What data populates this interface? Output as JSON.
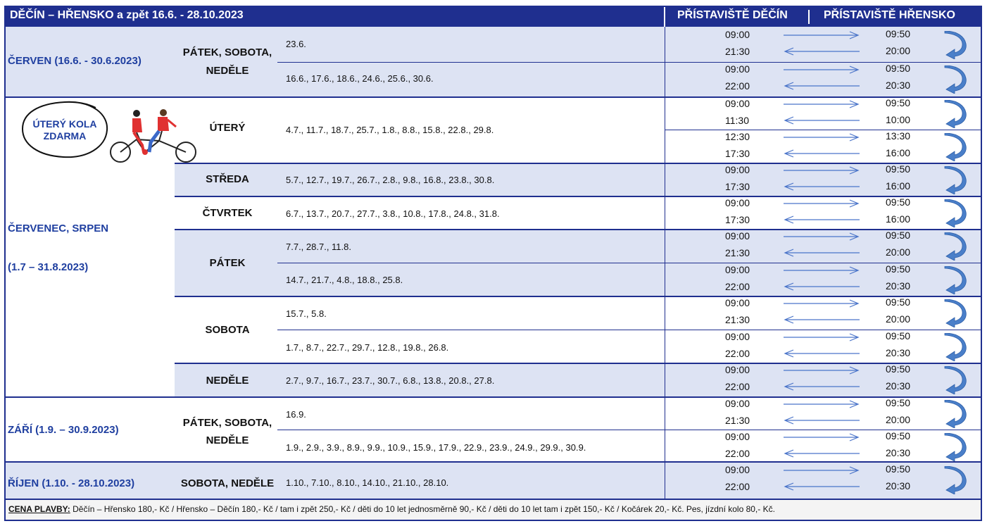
{
  "header": {
    "title": "DĚČÍN – HŘENSKO a zpět 16.6. - 28.10.2023",
    "port_decin": "PŘÍSTAVIŠTĚ DĚČÍN",
    "port_hrensko": "PŘÍSTAVIŠTĚ HŘENSKO"
  },
  "badge": {
    "line1": "ÚTERÝ KOLA",
    "line2": "ZDARMA"
  },
  "sections": [
    {
      "month": "ČERVEN    (16.6. - 30.6.2023)",
      "day": "PÁTEK, SOBOTA,",
      "day2": "NEDĚLE",
      "rows": [
        {
          "dates": "23.6.",
          "dep1": "09:00",
          "ret1": "21:30",
          "arr1": "09:50",
          "dep2": "20:00"
        },
        {
          "dates": "16.6., 17.6., 18.6., 24.6., 25.6., 30.6.",
          "dep1": "09:00",
          "ret1": "22:00",
          "arr1": "09:50",
          "dep2": "20:30"
        }
      ]
    },
    {
      "month": "ČERVENEC, SRPEN",
      "month2": "(1.7 – 31.8.2023)",
      "groups": [
        {
          "day": "ÚTERÝ",
          "rows": [
            {
              "dates": "4.7., 11.7., 18.7., 25.7., 1.8., 8.8., 15.8., 22.8., 29.8.",
              "dep1": "09:00",
              "ret1": "11:30",
              "arr1": "09:50",
              "dep2": "10:00"
            },
            {
              "dates": "",
              "dep1": "12:30",
              "ret1": "17:30",
              "arr1": "13:30",
              "dep2": "16:00"
            }
          ]
        },
        {
          "day": "STŘEDA",
          "rows": [
            {
              "dates": "5.7., 12.7., 19.7., 26.7., 2.8., 9.8., 16.8., 23.8., 30.8.",
              "dep1": "09:00",
              "ret1": "17:30",
              "arr1": "09:50",
              "dep2": "16:00"
            }
          ]
        },
        {
          "day": "ČTVRTEK",
          "rows": [
            {
              "dates": "6.7., 13.7., 20.7., 27.7., 3.8., 10.8., 17.8., 24.8., 31.8.",
              "dep1": "09:00",
              "ret1": "17:30",
              "arr1": "09:50",
              "dep2": "16:00"
            }
          ]
        },
        {
          "day": "PÁTEK",
          "rows": [
            {
              "dates": "7.7., 28.7., 11.8.",
              "dep1": "09:00",
              "ret1": "21:30",
              "arr1": "09:50",
              "dep2": "20:00"
            },
            {
              "dates": "14.7., 21.7., 4.8., 18.8., 25.8.",
              "dep1": "09:00",
              "ret1": "22:00",
              "arr1": "09:50",
              "dep2": "20:30"
            }
          ]
        },
        {
          "day": "SOBOTA",
          "rows": [
            {
              "dates": "15.7., 5.8.",
              "dep1": "09:00",
              "ret1": "21:30",
              "arr1": "09:50",
              "dep2": "20:00"
            },
            {
              "dates": "1.7., 8.7., 22.7., 29.7., 12.8., 19.8., 26.8.",
              "dep1": "09:00",
              "ret1": "22:00",
              "arr1": "09:50",
              "dep2": "20:30"
            }
          ]
        },
        {
          "day": "NEDĚLE",
          "rows": [
            {
              "dates": "2.7., 9.7., 16.7., 23.7., 30.7., 6.8., 13.8., 20.8., 27.8.",
              "dep1": "09:00",
              "ret1": "22:00",
              "arr1": "09:50",
              "dep2": "20:30"
            }
          ]
        }
      ]
    },
    {
      "month": "ZÁŘÍ   (1.9. – 30.9.2023)",
      "day": "PÁTEK, SOBOTA,",
      "day2": "NEDĚLE",
      "rows": [
        {
          "dates": "16.9.",
          "dep1": "09:00",
          "ret1": "21:30",
          "arr1": "09:50",
          "dep2": "20:00"
        },
        {
          "dates": "1.9., 2.9., 3.9., 8.9., 9.9., 10.9., 15.9., 17.9., 22.9., 23.9., 24.9., 29.9., 30.9.",
          "dep1": "09:00",
          "ret1": "22:00",
          "arr1": "09:50",
          "dep2": "20:30"
        }
      ]
    },
    {
      "month": "ŘÍJEN   (1.10. - 28.10.2023)",
      "day": "SOBOTA, NEDĚLE",
      "rows": [
        {
          "dates": "1.10., 7.10., 8.10., 14.10., 21.10., 28.10.",
          "dep1": "09:00",
          "ret1": "22:00",
          "arr1": "09:50",
          "dep2": "20:30"
        }
      ]
    }
  ],
  "footer": {
    "label": "CENA PLAVBY:",
    "text": " Děčín – Hřensko 180,- Kč / Hřensko – Děčín 180,- Kč / tam i zpět 250,- Kč / děti do 10 let jednosměrně 90,- Kč / děti do 10 let tam i zpět 150,- Kč / Kočárek 20,- Kč. Pes, jízdní kolo 80,- Kč."
  }
}
